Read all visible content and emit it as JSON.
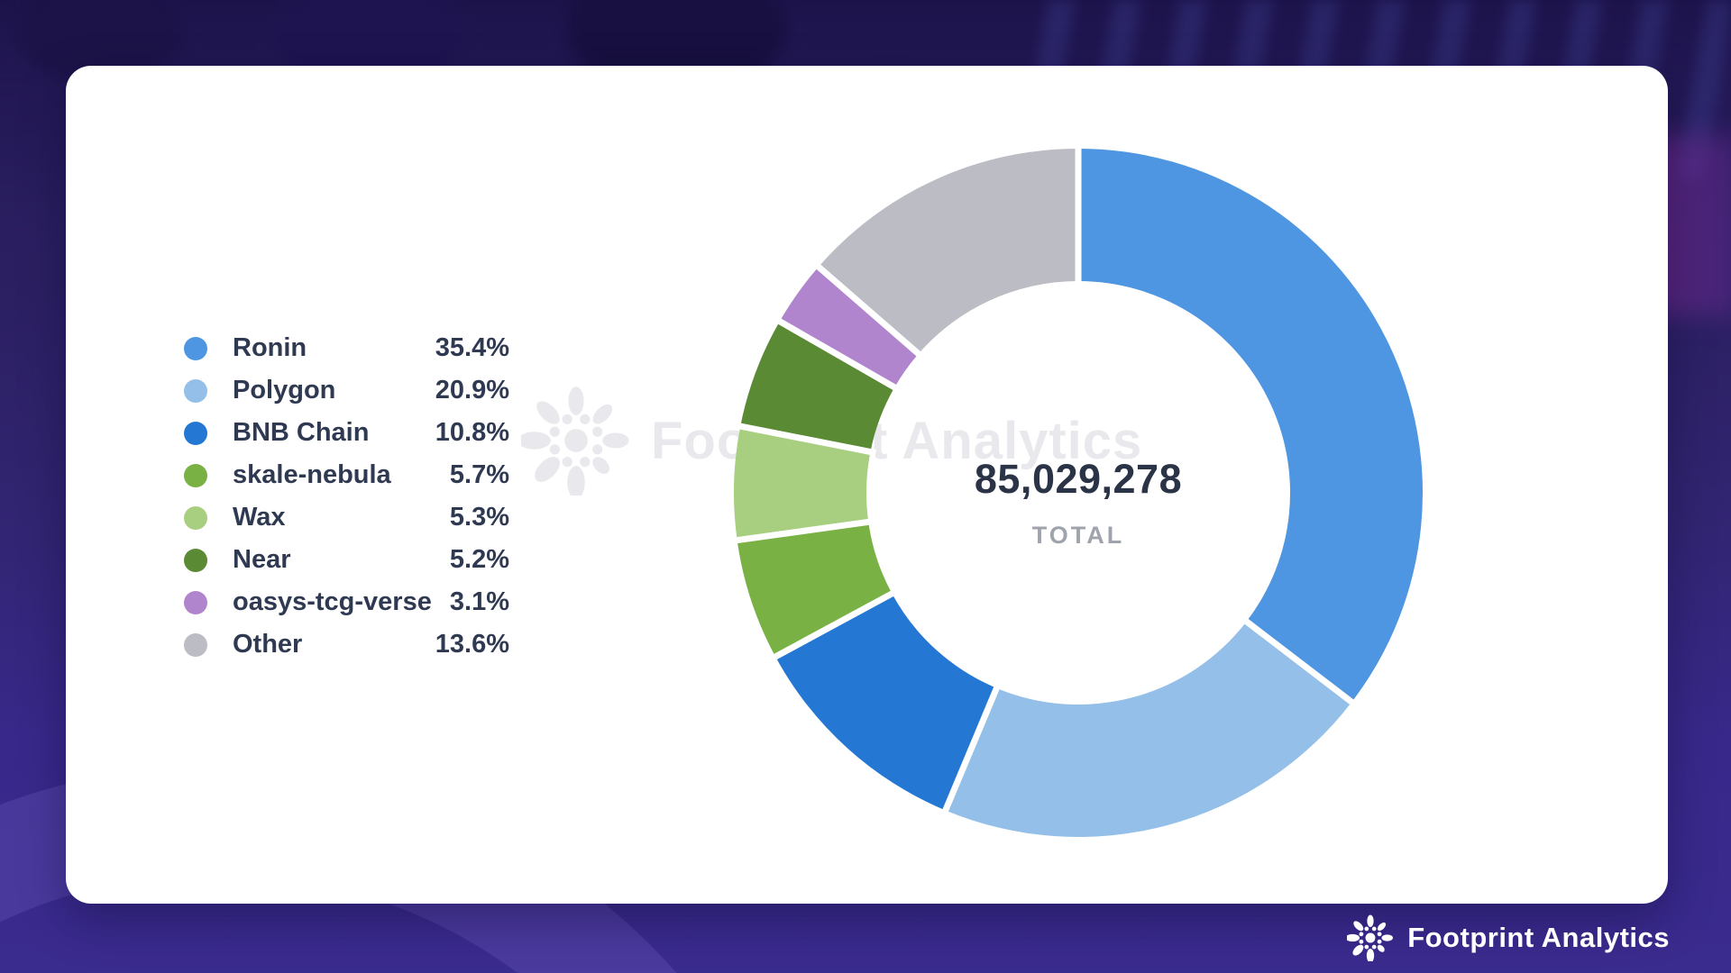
{
  "chart_data": {
    "type": "pie",
    "variant": "donut",
    "start_angle_deg": 0,
    "direction": "clockwise",
    "legend_position": "left",
    "total_value": "85,029,278",
    "total_label": "TOTAL",
    "series": [
      {
        "name": "Ronin",
        "value": 35.4,
        "value_label": "35.4%",
        "color": "#4e96e2"
      },
      {
        "name": "Polygon",
        "value": 20.9,
        "value_label": "20.9%",
        "color": "#93bfe9"
      },
      {
        "name": "BNB Chain",
        "value": 10.8,
        "value_label": "10.8%",
        "color": "#2478d3"
      },
      {
        "name": "skale-nebula",
        "value": 5.7,
        "value_label": "5.7%",
        "color": "#7ab144"
      },
      {
        "name": "Wax",
        "value": 5.3,
        "value_label": "5.3%",
        "color": "#a8cf80"
      },
      {
        "name": "Near",
        "value": 5.2,
        "value_label": "5.2%",
        "color": "#5a8a33"
      },
      {
        "name": "oasys-tcg-verse",
        "value": 3.1,
        "value_label": "3.1%",
        "color": "#b184ce"
      },
      {
        "name": "Other",
        "value": 13.6,
        "value_label": "13.6%",
        "color": "#bbbcc4"
      }
    ]
  },
  "watermark": {
    "text": "Footprint Analytics"
  },
  "footer": {
    "brand": "Footprint Analytics"
  },
  "colors": {
    "card_background": "#ffffff",
    "page_background": "#38288a",
    "slice_gap": "#ffffff",
    "legend_text": "#2f3a52",
    "total_text": "#2b3447",
    "total_label_text": "#9fa3ac",
    "watermark_text": "#e9e9ed",
    "footer_text": "#ffffff"
  }
}
